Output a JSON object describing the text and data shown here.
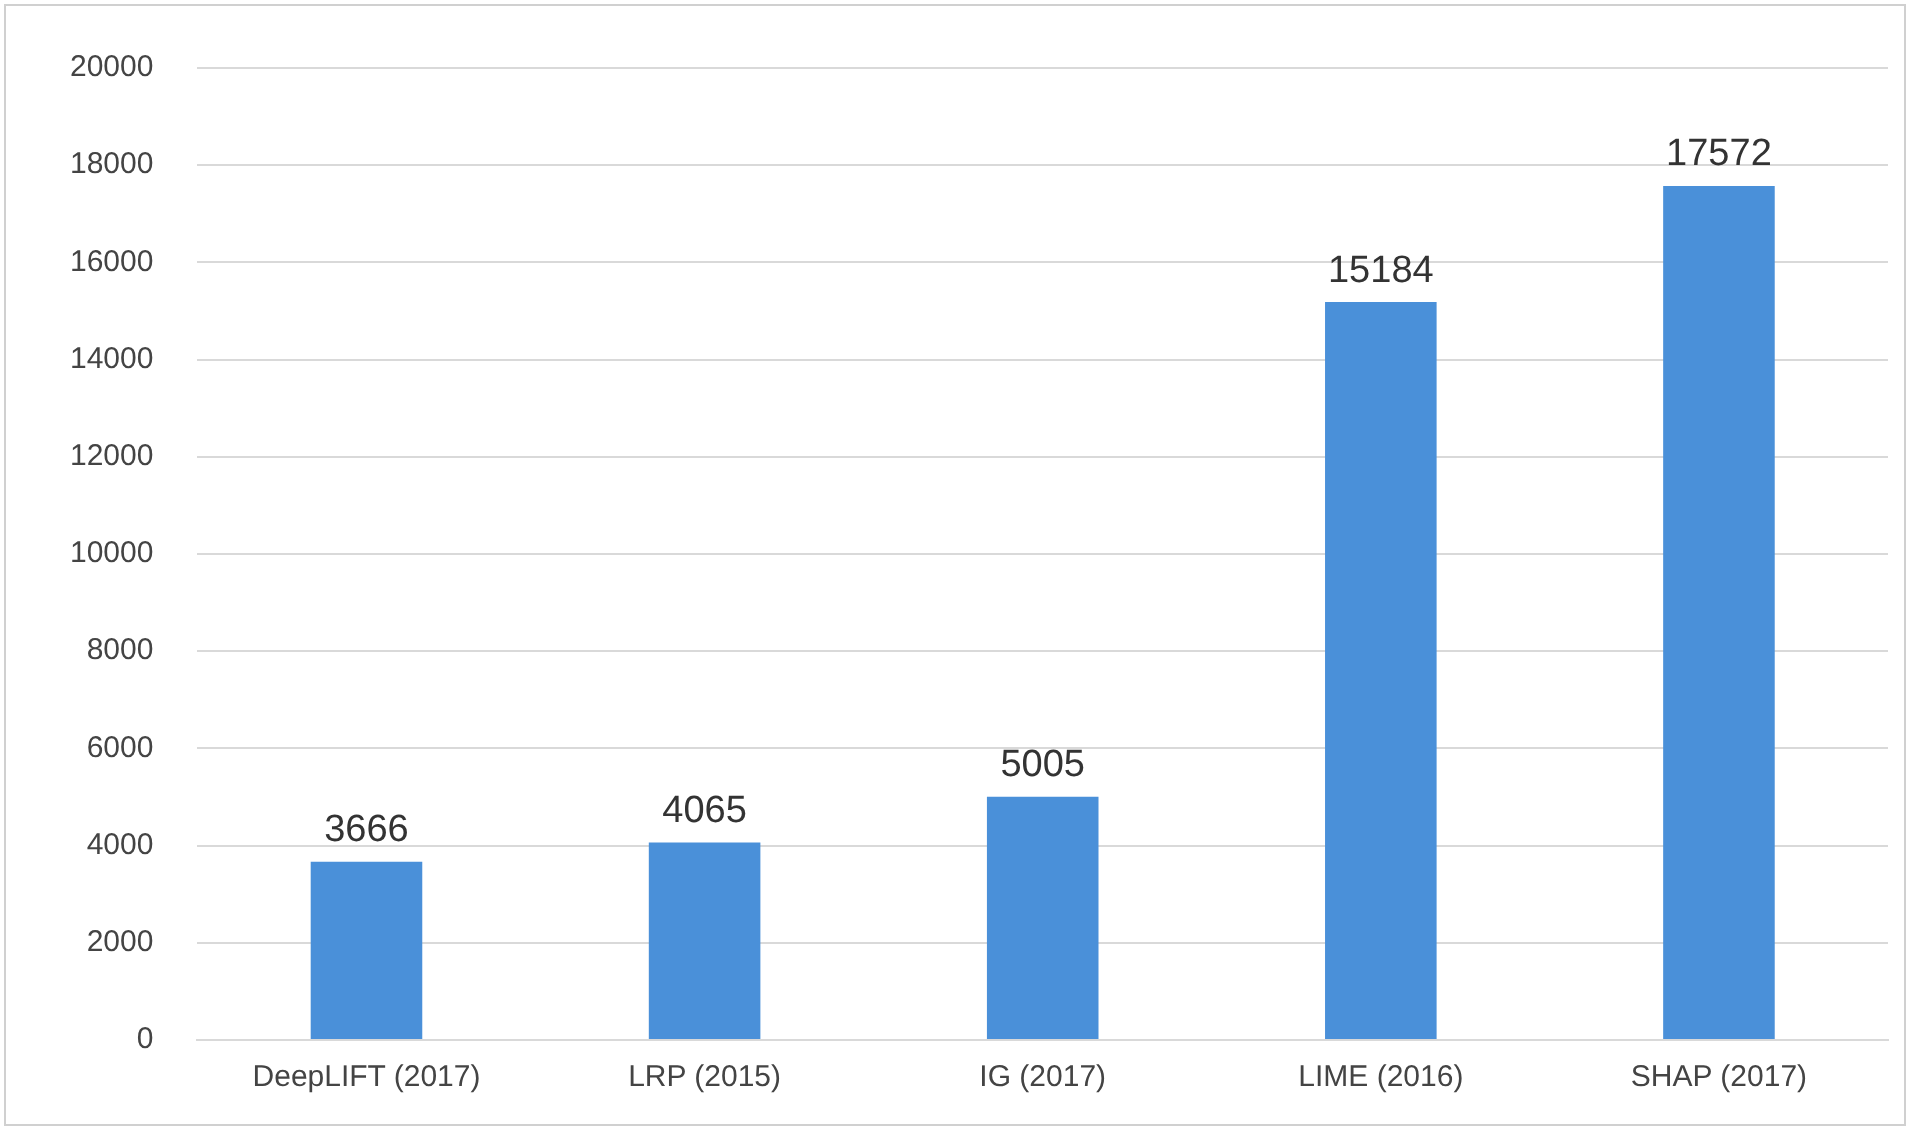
{
  "chart_data": {
    "type": "bar",
    "categories": [
      "DeepLIFT (2017)",
      "LRP (2015)",
      "IG (2017)",
      "LIME (2016)",
      "SHAP (2017)"
    ],
    "values": [
      3666,
      4065,
      5005,
      15184,
      17572
    ],
    "color": "#4a90d9",
    "ylim": [
      0,
      20000
    ],
    "yticks": [
      0,
      2000,
      4000,
      6000,
      8000,
      10000,
      12000,
      14000,
      16000,
      18000,
      20000
    ],
    "grid": "y",
    "data_labels": true
  }
}
